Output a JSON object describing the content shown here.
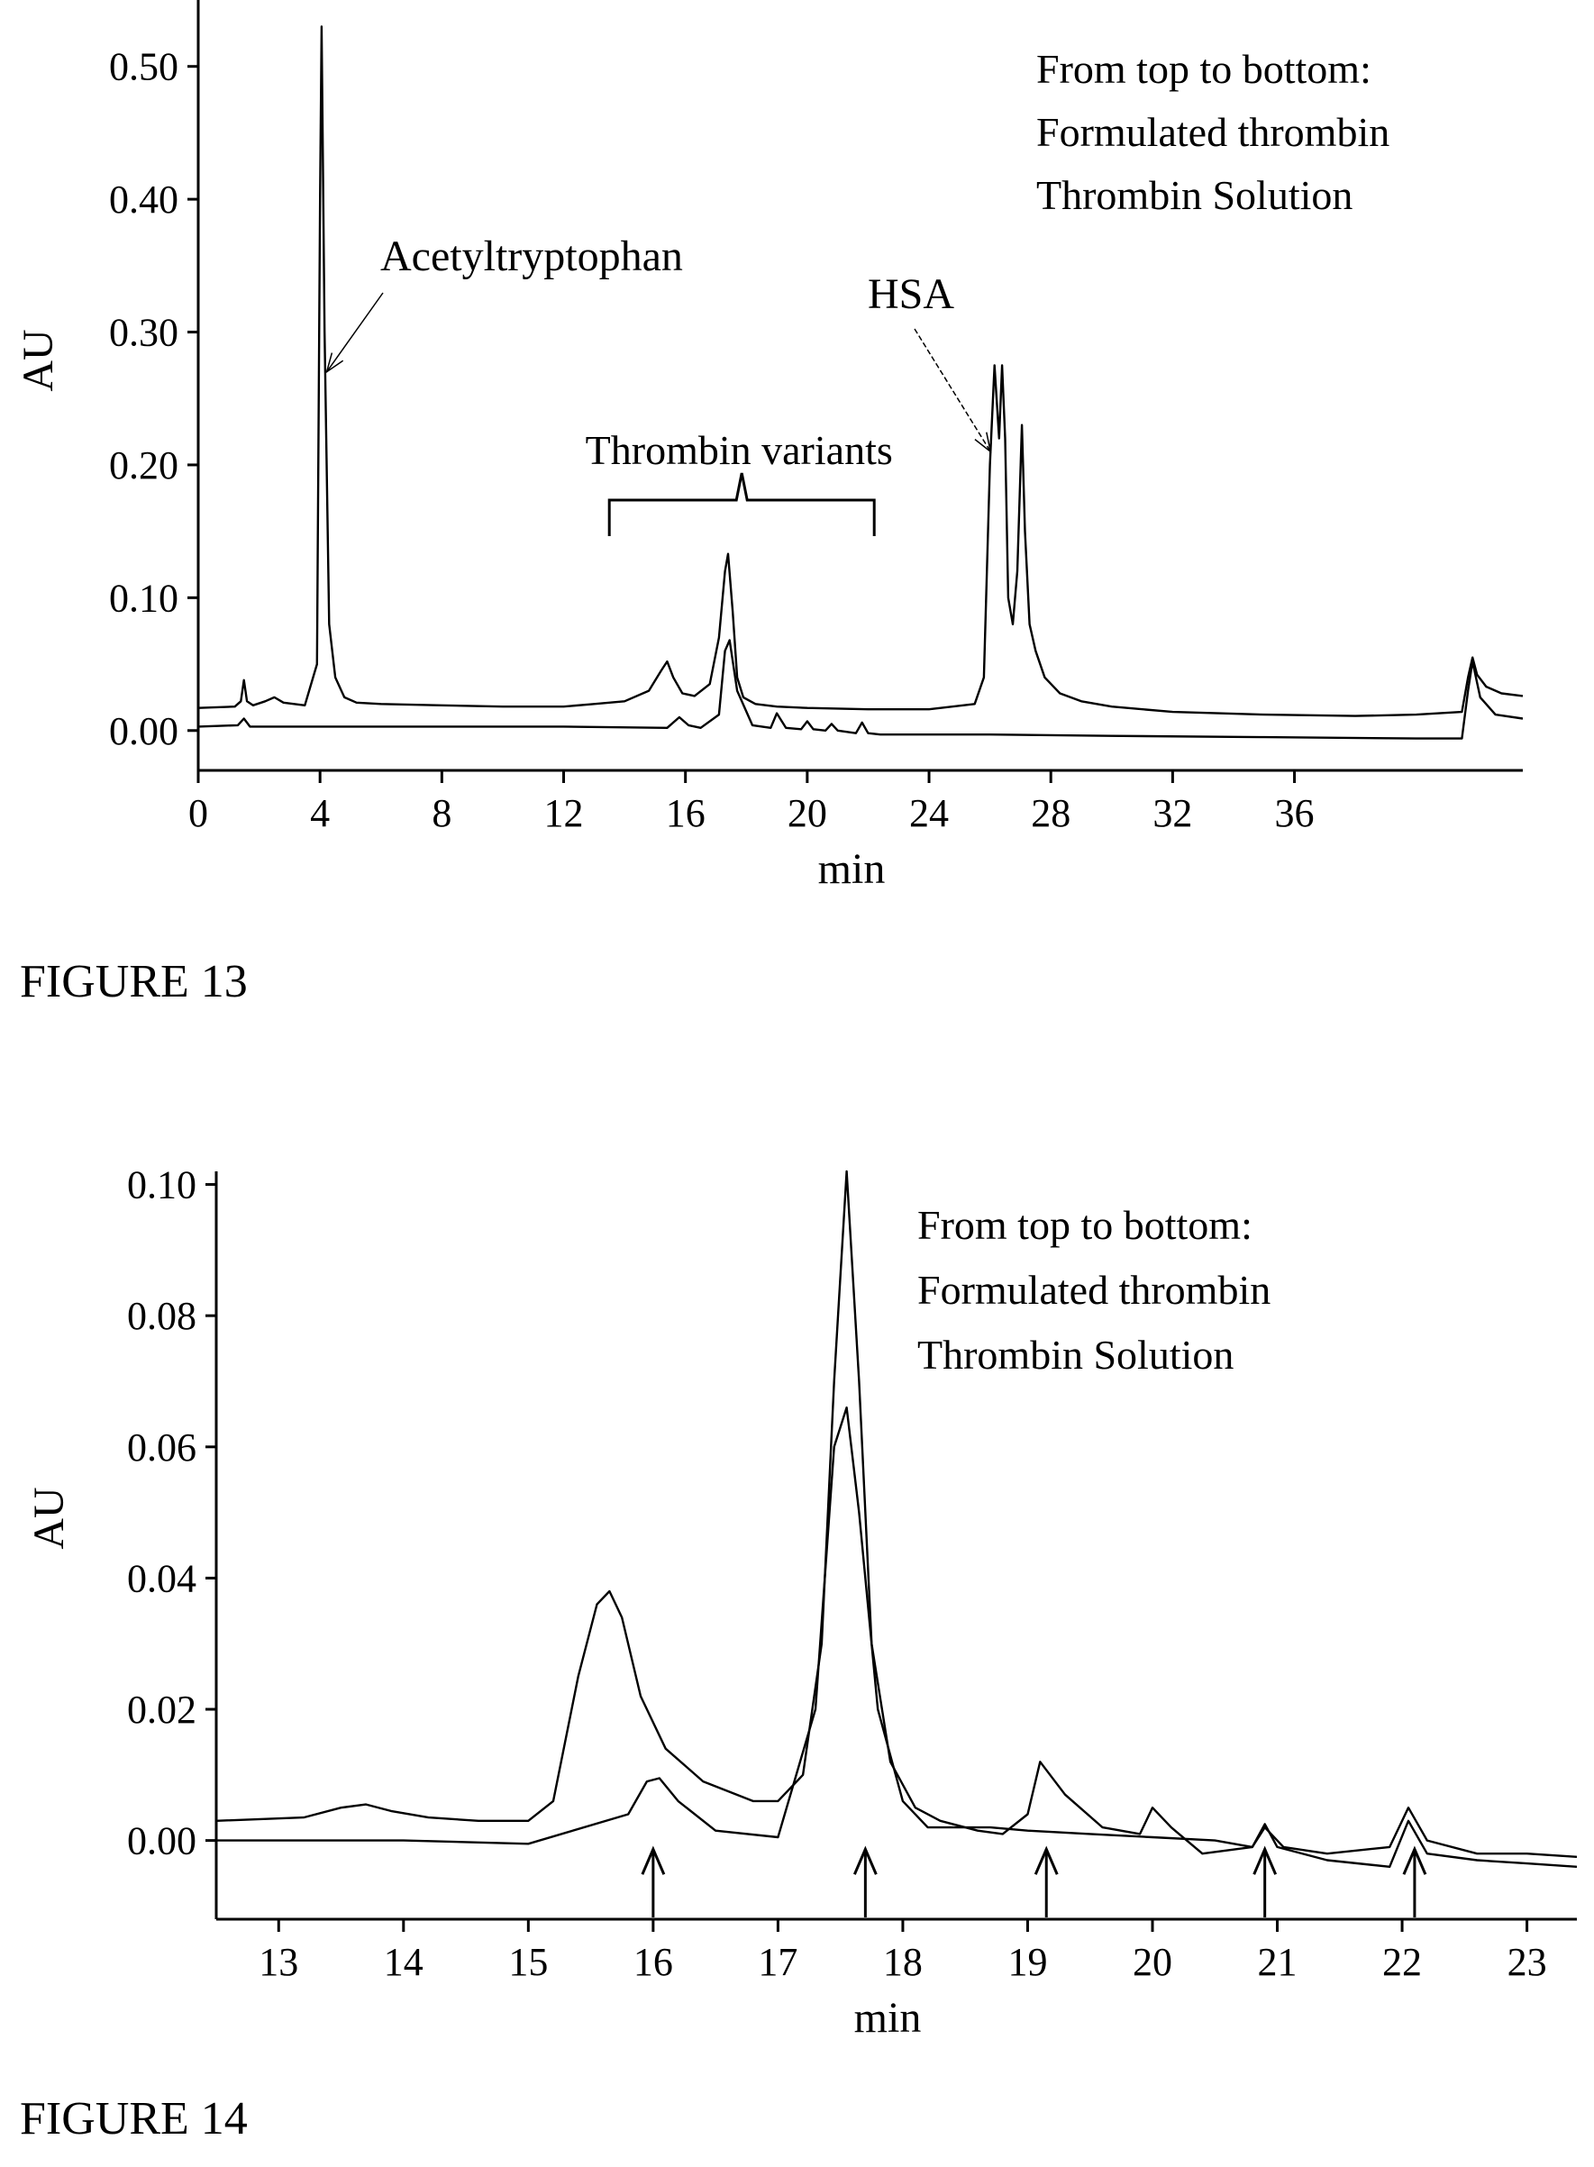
{
  "figures": [
    {
      "caption": "FIGURE 13"
    },
    {
      "caption": "FIGURE 14"
    }
  ],
  "chart_data": [
    {
      "type": "line",
      "xlabel": "min",
      "ylabel": "AU",
      "xlim": [
        0,
        43.5
      ],
      "ylim": [
        -0.03,
        0.55
      ],
      "x_ticks": [
        0,
        4,
        8,
        12,
        16,
        20,
        24,
        28,
        32,
        36
      ],
      "x_tick_labels": [
        "0",
        "4",
        "8",
        "12",
        "16",
        "20",
        "24",
        "28",
        "32",
        "36"
      ],
      "y_ticks": [
        0,
        0.1,
        0.2,
        0.3,
        0.4,
        0.5
      ],
      "y_tick_labels": [
        "0.00",
        "0.10",
        "0.20",
        "0.30",
        "0.40",
        "0.50"
      ],
      "legend_text": [
        "From top to bottom:",
        "Formulated thrombin",
        "Thrombin Solution"
      ],
      "legend_position": "top-right",
      "grid": false,
      "annotations": [
        {
          "text": "Acetyltryptophan",
          "target_x": 4.1,
          "target_y": 0.27
        },
        {
          "text": "HSA",
          "target_x": 25.9,
          "target_y": 0.21
        },
        {
          "text": "Thrombin variants",
          "bracket_from": 13.5,
          "bracket_to": 22.2
        }
      ],
      "series": [
        {
          "line_color": "#000000",
          "x": [
            0,
            1.2,
            1.4,
            1.5,
            1.6,
            1.8,
            2.2,
            2.5,
            2.8,
            3.5,
            3.9,
            4.0,
            4.05,
            4.15,
            4.3,
            4.5,
            4.8,
            5.2,
            6,
            8,
            10,
            12,
            13,
            14,
            14.8,
            15.2,
            15.4,
            15.6,
            15.9,
            16.3,
            16.8,
            17.1,
            17.3,
            17.4,
            17.55,
            17.7,
            17.9,
            18.3,
            19,
            20,
            22,
            24,
            25.5,
            25.8,
            26.0,
            26.15,
            26.3,
            26.4,
            26.5,
            26.6,
            26.75,
            26.9,
            27.05,
            27.15,
            27.3,
            27.5,
            27.8,
            28.3,
            29,
            30,
            32,
            33.5,
            35,
            38,
            40,
            41.5,
            41.7,
            41.85,
            42.0,
            42.3,
            42.8,
            43.5
          ],
          "y": [
            0.017,
            0.018,
            0.022,
            0.038,
            0.022,
            0.019,
            0.022,
            0.025,
            0.021,
            0.019,
            0.05,
            0.4,
            0.53,
            0.3,
            0.08,
            0.04,
            0.025,
            0.021,
            0.02,
            0.019,
            0.018,
            0.018,
            0.02,
            0.022,
            0.03,
            0.045,
            0.052,
            0.04,
            0.028,
            0.026,
            0.035,
            0.07,
            0.12,
            0.133,
            0.09,
            0.04,
            0.025,
            0.02,
            0.018,
            0.017,
            0.016,
            0.016,
            0.02,
            0.04,
            0.2,
            0.275,
            0.22,
            0.275,
            0.22,
            0.1,
            0.08,
            0.12,
            0.23,
            0.15,
            0.08,
            0.06,
            0.04,
            0.028,
            0.022,
            0.018,
            0.014,
            0.013,
            0.012,
            0.011,
            0.012,
            0.014,
            0.04,
            0.055,
            0.042,
            0.033,
            0.028,
            0.026
          ]
        },
        {
          "line_color": "#000000",
          "x": [
            0,
            1.3,
            1.5,
            1.7,
            4,
            8,
            12,
            15.4,
            15.8,
            16.1,
            16.5,
            17.1,
            17.3,
            17.45,
            17.7,
            18.2,
            18.8,
            19.0,
            19.3,
            19.8,
            20.0,
            20.2,
            20.6,
            20.8,
            21.0,
            21.6,
            21.8,
            22.0,
            22.4,
            26,
            30,
            35,
            40,
            41.5,
            41.7,
            41.85,
            42.1,
            42.6,
            43.5
          ],
          "y": [
            0.003,
            0.004,
            0.009,
            0.003,
            0.003,
            0.003,
            0.003,
            0.002,
            0.01,
            0.004,
            0.002,
            0.012,
            0.06,
            0.068,
            0.03,
            0.004,
            0.002,
            0.013,
            0.002,
            0.001,
            0.007,
            0.001,
            0.0,
            0.005,
            0.0,
            -0.002,
            0.006,
            -0.002,
            -0.003,
            -0.003,
            -0.004,
            -0.005,
            -0.006,
            -0.006,
            0.03,
            0.052,
            0.025,
            0.012,
            0.009
          ]
        }
      ]
    },
    {
      "type": "line",
      "xlabel": "min",
      "ylabel": "AU",
      "xlim": [
        12.5,
        23.4
      ],
      "ylim": [
        -0.012,
        0.102
      ],
      "x_ticks": [
        13,
        14,
        15,
        16,
        17,
        18,
        19,
        20,
        21,
        22,
        23
      ],
      "x_tick_labels": [
        "13",
        "14",
        "15",
        "16",
        "17",
        "18",
        "19",
        "20",
        "21",
        "22",
        "23"
      ],
      "y_ticks": [
        0,
        0.02,
        0.04,
        0.06,
        0.08,
        0.1
      ],
      "y_tick_labels": [
        "0.00",
        "0.02",
        "0.04",
        "0.06",
        "0.08",
        "0.10"
      ],
      "legend_text": [
        "From top to bottom:",
        "Formulated thrombin",
        "Thrombin Solution"
      ],
      "legend_position": "top-right",
      "grid": false,
      "arrows_at_x": [
        16.0,
        17.7,
        19.15,
        20.9,
        22.1
      ],
      "series": [
        {
          "line_color": "#000000",
          "x": [
            12.5,
            13.2,
            13.5,
            13.7,
            13.9,
            14.2,
            14.6,
            15.0,
            15.2,
            15.4,
            15.55,
            15.65,
            15.75,
            15.9,
            16.1,
            16.4,
            16.8,
            17.0,
            17.2,
            17.35,
            17.45,
            17.55,
            17.65,
            17.75,
            17.9,
            18.1,
            18.3,
            18.6,
            18.8,
            19.0,
            19.1,
            19.3,
            19.6,
            19.9,
            20.0,
            20.15,
            20.4,
            20.8,
            20.9,
            21.05,
            21.4,
            21.9,
            22.05,
            22.2,
            22.6,
            23.0,
            23.4
          ],
          "y": [
            0.003,
            0.0035,
            0.005,
            0.0055,
            0.0045,
            0.0035,
            0.003,
            0.003,
            0.006,
            0.025,
            0.036,
            0.038,
            0.034,
            0.022,
            0.014,
            0.009,
            0.006,
            0.006,
            0.01,
            0.03,
            0.07,
            0.102,
            0.07,
            0.03,
            0.012,
            0.005,
            0.003,
            0.0015,
            0.001,
            0.004,
            0.012,
            0.007,
            0.002,
            0.001,
            0.005,
            0.002,
            -0.002,
            -0.001,
            0.002,
            -0.001,
            -0.002,
            -0.001,
            0.005,
            0.0,
            -0.002,
            -0.002,
            -0.0025
          ]
        },
        {
          "line_color": "#000000",
          "x": [
            12.5,
            14.0,
            15.0,
            15.8,
            15.95,
            16.05,
            16.2,
            16.5,
            17.0,
            17.3,
            17.45,
            17.55,
            17.65,
            17.8,
            18.0,
            18.2,
            18.5,
            18.7,
            19.0,
            19.5,
            20.0,
            20.5,
            20.8,
            20.9,
            21.0,
            21.4,
            21.9,
            22.05,
            22.2,
            22.6,
            23.0,
            23.4
          ],
          "y": [
            0.0,
            0.0,
            -0.0005,
            0.004,
            0.009,
            0.0095,
            0.006,
            0.0015,
            0.0005,
            0.02,
            0.06,
            0.066,
            0.05,
            0.02,
            0.006,
            0.002,
            0.002,
            0.002,
            0.0015,
            0.001,
            0.0005,
            0.0,
            -0.001,
            0.0025,
            -0.001,
            -0.003,
            -0.004,
            0.003,
            -0.002,
            -0.003,
            -0.0035,
            -0.004
          ]
        }
      ]
    }
  ]
}
